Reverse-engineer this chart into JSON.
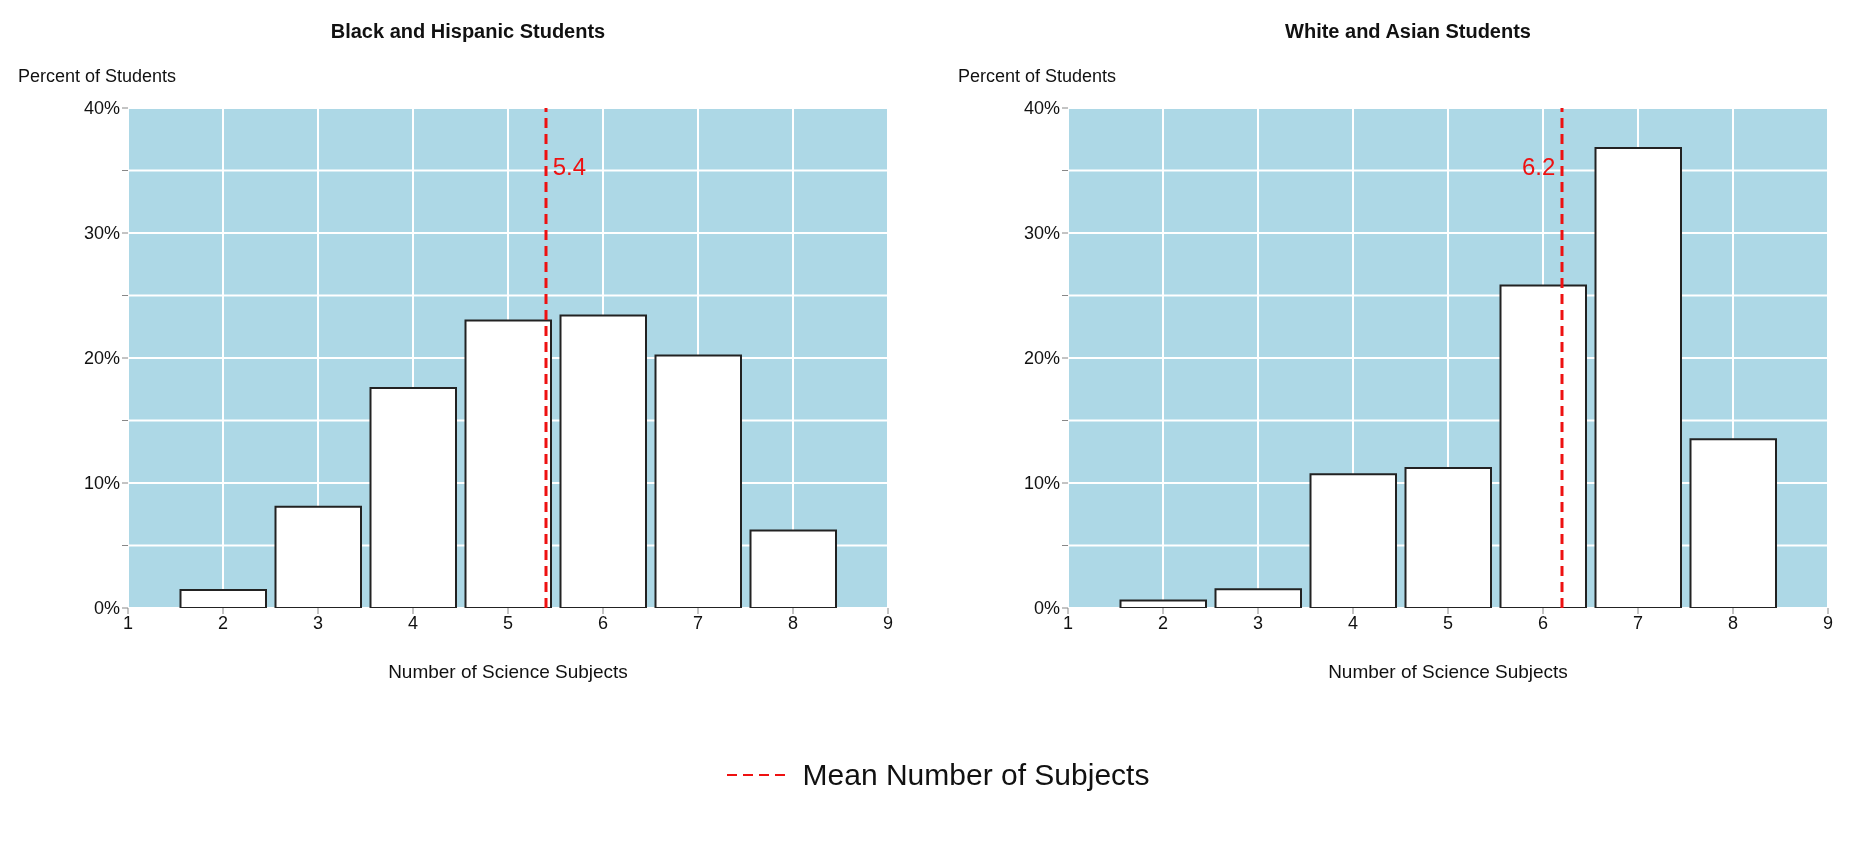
{
  "chart_data": [
    {
      "type": "bar",
      "title": "Black and Hispanic Students",
      "xlabel": "Number of Science Subjects",
      "ylabel": "Percent of Students",
      "x": [
        2,
        3,
        4,
        5,
        6,
        7,
        8
      ],
      "values": [
        1.45,
        8.1,
        17.6,
        23.0,
        23.4,
        20.2,
        6.2
      ],
      "color": "#ffffff",
      "xlim": [
        1,
        9
      ],
      "xticks": [
        1,
        2,
        3,
        4,
        5,
        6,
        7,
        8,
        9
      ],
      "ylim": [
        0,
        40
      ],
      "yticks": [
        {
          "value": 0,
          "label": "0%"
        },
        {
          "value": 5,
          "label": null
        },
        {
          "value": 10,
          "label": "10%"
        },
        {
          "value": 15,
          "label": null
        },
        {
          "value": 20,
          "label": "20%"
        },
        {
          "value": 25,
          "label": null
        },
        {
          "value": 30,
          "label": "30%"
        },
        {
          "value": 35,
          "label": null
        },
        {
          "value": 40,
          "label": "40%"
        }
      ],
      "grid": true,
      "ref_lines": [
        {
          "axis": "x",
          "value": 5.4,
          "label": "5.4",
          "color": "#ee1111",
          "line_style": "dashed"
        }
      ],
      "annotations": [
        "Mean Number of Subjects"
      ]
    },
    {
      "type": "bar",
      "title": "White and Asian Students",
      "xlabel": "Number of Science Subjects",
      "ylabel": "Percent of Students",
      "x": [
        2,
        3,
        4,
        5,
        6,
        7,
        8
      ],
      "values": [
        0.6,
        1.5,
        10.7,
        11.2,
        25.8,
        36.8,
        13.5
      ],
      "color": "#ffffff",
      "xlim": [
        1,
        9
      ],
      "xticks": [
        1,
        2,
        3,
        4,
        5,
        6,
        7,
        8,
        9
      ],
      "ylim": [
        0,
        40
      ],
      "yticks": [
        {
          "value": 0,
          "label": "0%"
        },
        {
          "value": 5,
          "label": null
        },
        {
          "value": 10,
          "label": "10%"
        },
        {
          "value": 15,
          "label": null
        },
        {
          "value": 20,
          "label": "20%"
        },
        {
          "value": 25,
          "label": null
        },
        {
          "value": 30,
          "label": "30%"
        },
        {
          "value": 35,
          "label": null
        },
        {
          "value": 40,
          "label": "40%"
        }
      ],
      "grid": true,
      "ref_lines": [
        {
          "axis": "x",
          "value": 6.2,
          "label": "6.2",
          "color": "#ee1111",
          "line_style": "dashed"
        }
      ]
    }
  ]
}
